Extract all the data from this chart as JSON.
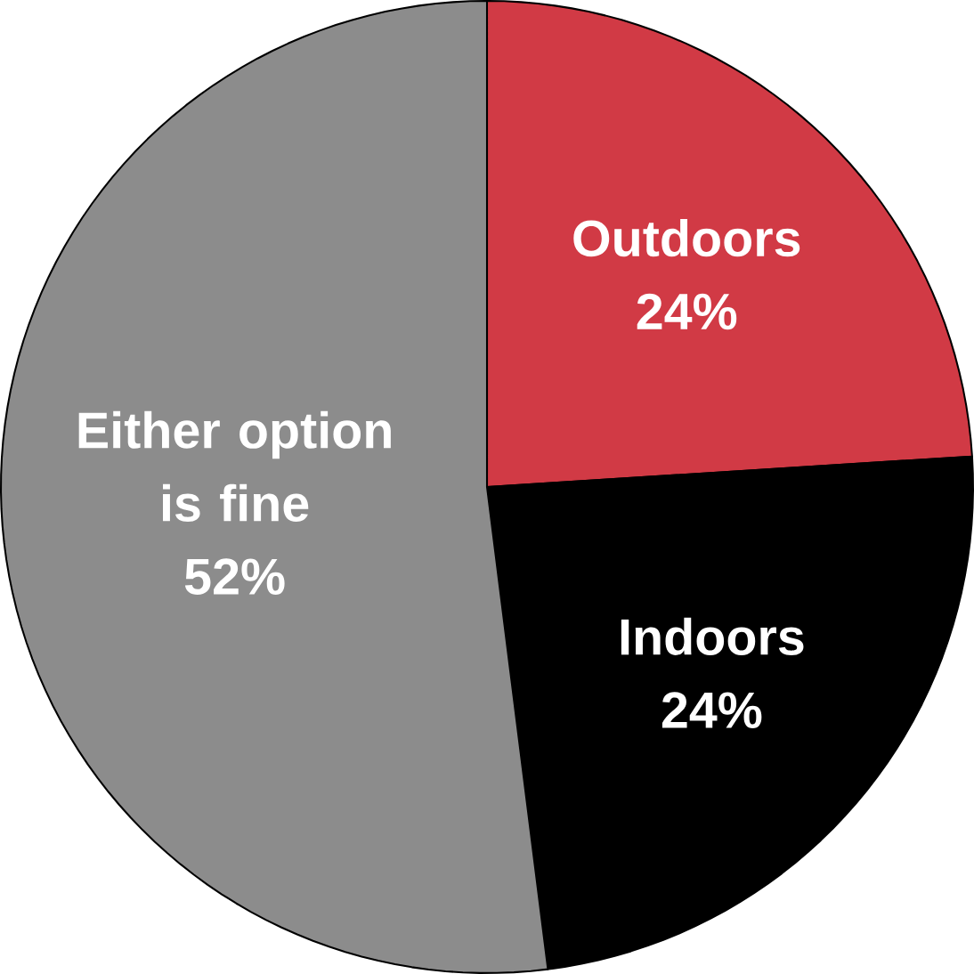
{
  "chart_data": {
    "type": "pie",
    "categories": [
      "Outdoors",
      "Indoors",
      "Either option is fine"
    ],
    "values": [
      24,
      24,
      52
    ],
    "colors": [
      "#d13a45",
      "#000000",
      "#8c8c8c"
    ],
    "value_labels": [
      "24%",
      "24%",
      "52%"
    ]
  }
}
